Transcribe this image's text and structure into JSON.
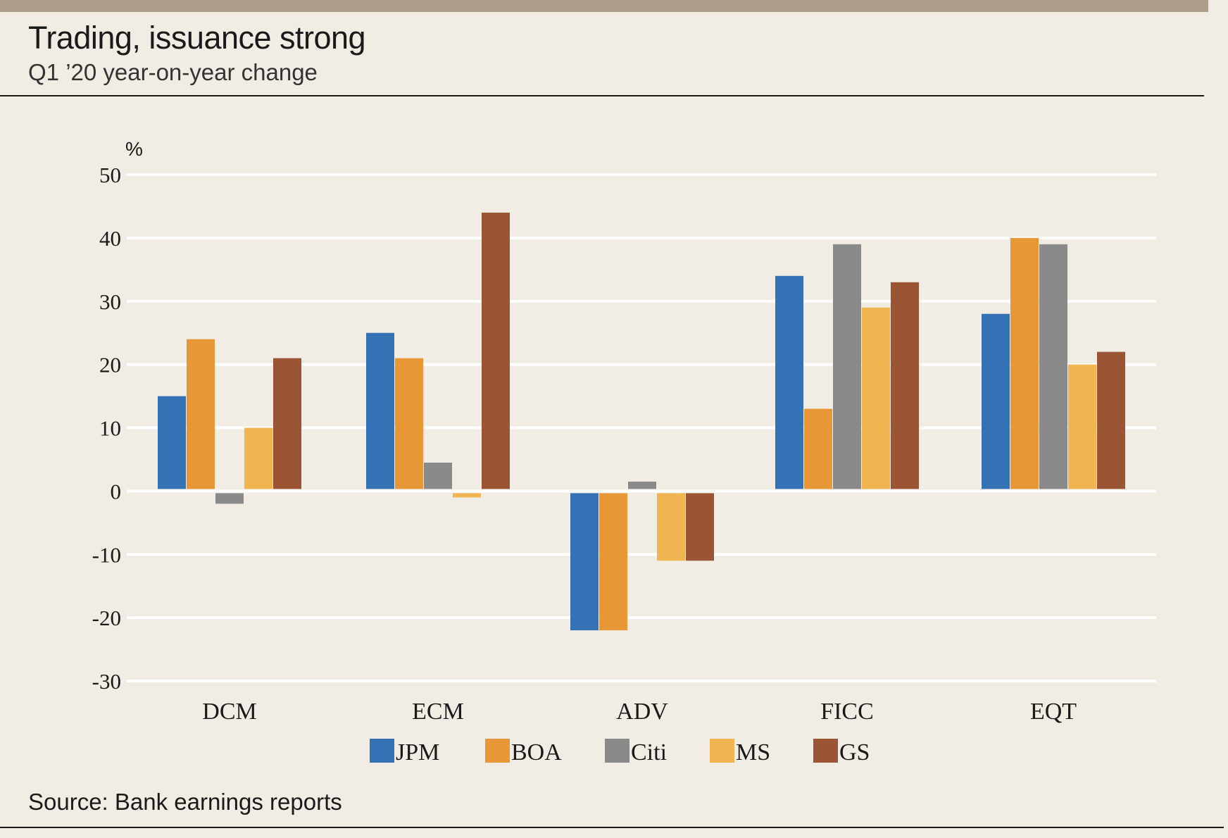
{
  "header": {
    "title": "Trading, issuance strong",
    "subtitle": "Q1 ’20 year-on-year change"
  },
  "footer": {
    "source": "Source: Bank earnings reports"
  },
  "chart_data": {
    "type": "bar",
    "categories": [
      "DCM",
      "ECM",
      "ADV",
      "FICC",
      "EQT"
    ],
    "series": [
      {
        "name": "JPM",
        "color": "#3471b5",
        "values": [
          15,
          25,
          -22,
          34,
          28
        ]
      },
      {
        "name": "BOA",
        "color": "#e79735",
        "values": [
          24,
          21,
          -22,
          13,
          40
        ]
      },
      {
        "name": "Citi",
        "color": "#8a8a8a",
        "values": [
          -2,
          4.5,
          1.5,
          39,
          39
        ]
      },
      {
        "name": "MS",
        "color": "#f0b550",
        "values": [
          10,
          -1,
          -11,
          29,
          20
        ]
      },
      {
        "name": "GS",
        "color": "#9b5535",
        "values": [
          21,
          44,
          -11,
          33,
          22
        ]
      }
    ],
    "ylabel": "%",
    "ylim": [
      -30,
      50
    ],
    "yticks": [
      50,
      40,
      30,
      20,
      10,
      0,
      -10,
      -20,
      -30
    ],
    "legend": "bottom",
    "grid": true
  }
}
